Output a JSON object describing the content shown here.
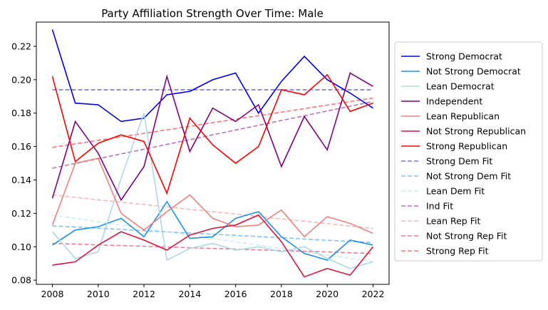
{
  "chart_data": {
    "type": "line",
    "title": "Party Affiliation Strength Over Time: Male",
    "xlabel": "",
    "ylabel": "",
    "xlim": [
      2007.3,
      2022.7
    ],
    "ylim": [
      0.0775,
      0.2345
    ],
    "x_ticks": [
      2008,
      2010,
      2012,
      2014,
      2016,
      2018,
      2020,
      2022
    ],
    "y_ticks": [
      0.08,
      0.1,
      0.12,
      0.14,
      0.16,
      0.18,
      0.2,
      0.22
    ],
    "y_tick_labels": [
      "0.08",
      "0.10",
      "0.12",
      "0.14",
      "0.16",
      "0.18",
      "0.20",
      "0.22"
    ],
    "grid": false,
    "legend_position": "outside-right",
    "x": [
      2008,
      2009,
      2010,
      2011,
      2012,
      2013,
      2014,
      2015,
      2016,
      2017,
      2018,
      2019,
      2020,
      2021,
      2022
    ],
    "series": [
      {
        "name": "Strong Democrat",
        "color": "#0000ee",
        "dash": false,
        "values": [
          0.23,
          0.186,
          0.185,
          0.175,
          0.177,
          0.191,
          0.193,
          0.2,
          0.204,
          0.18,
          0.199,
          0.214,
          0.2,
          0.192,
          0.183
        ]
      },
      {
        "name": "Not Strong Democrat",
        "color": "#1e8fef",
        "dash": false,
        "values": [
          0.101,
          0.11,
          0.112,
          0.117,
          0.106,
          0.127,
          0.105,
          0.106,
          0.117,
          0.121,
          0.106,
          0.096,
          0.092,
          0.104,
          0.101
        ]
      },
      {
        "name": "Lean Democrat",
        "color": "#add8e6",
        "dash": false,
        "values": [
          0.109,
          0.093,
          0.097,
          0.141,
          0.18,
          0.092,
          0.099,
          0.102,
          0.098,
          0.1,
          0.097,
          0.1,
          0.093,
          0.087,
          0.091
        ]
      },
      {
        "name": "Independent",
        "color": "#800080",
        "dash": false,
        "values": [
          0.129,
          0.175,
          0.156,
          0.128,
          0.148,
          0.202,
          0.157,
          0.183,
          0.175,
          0.185,
          0.148,
          0.178,
          0.158,
          0.204,
          0.196
        ]
      },
      {
        "name": "Lean Republican",
        "color": "#f08080",
        "dash": false,
        "values": [
          0.113,
          0.15,
          0.153,
          0.12,
          0.11,
          0.121,
          0.131,
          0.117,
          0.112,
          0.113,
          0.122,
          0.106,
          0.118,
          0.114,
          0.108
        ]
      },
      {
        "name": "Not Strong Republican",
        "color": "#dc143c",
        "dash": false,
        "values": [
          0.089,
          0.091,
          0.101,
          0.109,
          0.104,
          0.098,
          0.107,
          0.111,
          0.113,
          0.119,
          0.103,
          0.082,
          0.087,
          0.083,
          0.1
        ]
      },
      {
        "name": "Strong Republican",
        "color": "#ff0000",
        "dash": false,
        "values": [
          0.202,
          0.151,
          0.162,
          0.167,
          0.163,
          0.132,
          0.177,
          0.161,
          0.15,
          0.16,
          0.194,
          0.191,
          0.203,
          0.181,
          0.186
        ]
      },
      {
        "name": "Strong Dem Fit",
        "color": "#0000ee",
        "dash": true,
        "values": [
          0.194,
          0.194,
          0.194,
          0.194,
          0.194,
          0.194,
          0.194,
          0.194,
          0.194,
          0.194,
          0.194,
          0.194,
          0.194,
          0.194,
          0.194
        ]
      },
      {
        "name": "Not Strong Dem Fit",
        "color": "#1e8fef",
        "dash": true,
        "values": [
          0.1125,
          0.1118,
          0.1111,
          0.1104,
          0.1096,
          0.1089,
          0.1082,
          0.1075,
          0.1068,
          0.1061,
          0.1054,
          0.1046,
          0.1039,
          0.1032,
          0.1025
        ]
      },
      {
        "name": "Lean Dem Fit",
        "color": "#add8e6",
        "dash": true,
        "values": [
          0.119,
          0.117,
          0.115,
          0.113,
          0.111,
          0.109,
          0.107,
          0.105,
          0.103,
          0.101,
          0.099,
          0.097,
          0.095,
          0.093,
          0.091
        ]
      },
      {
        "name": "Ind Fit",
        "color": "#800080",
        "dash": true,
        "values": [
          0.147,
          0.1499,
          0.1527,
          0.1556,
          0.1584,
          0.1613,
          0.1641,
          0.167,
          0.1699,
          0.1727,
          0.1756,
          0.1784,
          0.1813,
          0.1841,
          0.187
        ]
      },
      {
        "name": "Lean Rep Fit",
        "color": "#f08080",
        "dash": true,
        "values": [
          0.131,
          0.1296,
          0.1281,
          0.1267,
          0.1253,
          0.1239,
          0.1224,
          0.121,
          0.1196,
          0.1181,
          0.1167,
          0.1153,
          0.1139,
          0.1124,
          0.111
        ]
      },
      {
        "name": "Not Strong Rep Fit",
        "color": "#dc143c",
        "dash": true,
        "values": [
          0.102,
          0.1016,
          0.1011,
          0.1007,
          0.1003,
          0.0999,
          0.0994,
          0.099,
          0.0986,
          0.0981,
          0.0977,
          0.0973,
          0.0969,
          0.0964,
          0.096
        ]
      },
      {
        "name": "Strong Rep Fit",
        "color": "#ff0000",
        "dash": true,
        "values": [
          0.1595,
          0.1616,
          0.1637,
          0.1658,
          0.1679,
          0.17,
          0.1721,
          0.1743,
          0.1764,
          0.1785,
          0.1806,
          0.1827,
          0.1848,
          0.1869,
          0.189
        ]
      }
    ]
  }
}
